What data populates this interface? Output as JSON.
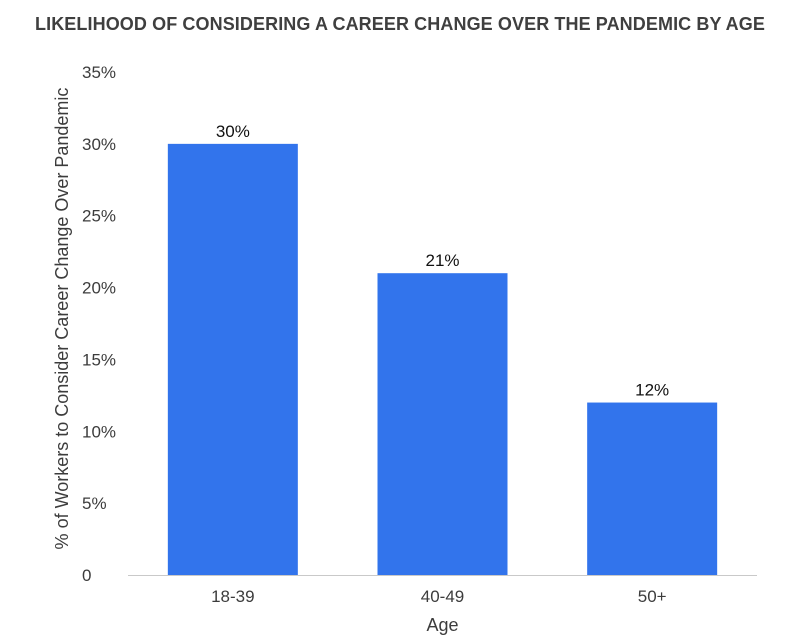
{
  "chart_data": {
    "type": "bar",
    "title": "LIKELIHOOD OF CONSIDERING A CAREER CHANGE OVER THE PANDEMIC BY AGE",
    "xlabel": "Age",
    "ylabel": "% of Workers to Consider Career Change Over Pandemic",
    "categories": [
      "18-39",
      "40-49",
      "50+"
    ],
    "values": [
      30,
      21,
      12
    ],
    "data_labels": [
      "30%",
      "21%",
      "12%"
    ],
    "ylim": [
      0,
      35
    ],
    "yticks": [
      0,
      5,
      10,
      15,
      20,
      25,
      30,
      35
    ],
    "ytick_labels": [
      "0",
      "5%",
      "10%",
      "15%",
      "20%",
      "25%",
      "30%",
      "35%"
    ],
    "bar_color": "#3274ec",
    "grid": false,
    "legend": "none"
  }
}
